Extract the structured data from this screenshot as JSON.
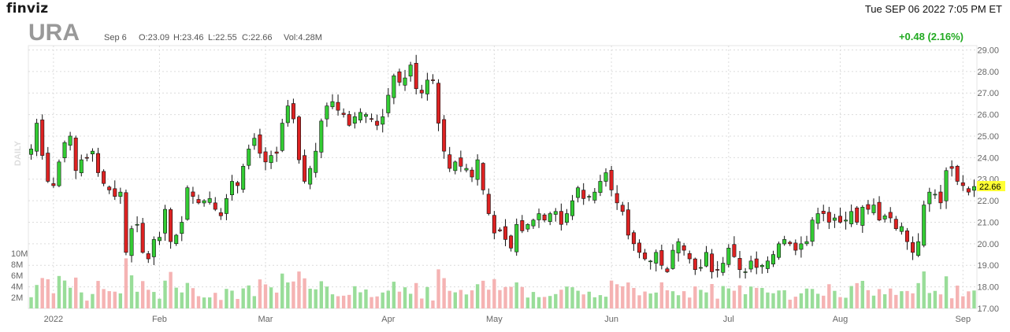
{
  "header": {
    "logo": "finviz",
    "datetime": "Tue SEP 06 2022 7:05 PM ET"
  },
  "chart_data": {
    "type": "candlestick",
    "ticker": "URA",
    "period_label": "DAILY",
    "info": {
      "date": "Sep 6",
      "open": "O:23.09",
      "high": "H:23.46",
      "low": "L:22.55",
      "close": "C:22.66",
      "volume": "Vol:4.28M"
    },
    "change": "+0.48 (2.16%)",
    "last_price": "22.66",
    "price_ylim": [
      17.0,
      29.2
    ],
    "price_ticks": [
      "29.00",
      "28.00",
      "27.00",
      "26.00",
      "25.00",
      "24.00",
      "23.00",
      "22.00",
      "21.00",
      "20.00",
      "19.00",
      "18.00",
      "17.00"
    ],
    "volume_ticks": [
      "10M",
      "8M",
      "6M",
      "4M",
      "2M"
    ],
    "volume_ylim": [
      0,
      12
    ],
    "x_labels": [
      {
        "label": "2022",
        "bar": 4
      },
      {
        "label": "Feb",
        "bar": 23
      },
      {
        "label": "Mar",
        "bar": 42
      },
      {
        "label": "Apr",
        "bar": 64
      },
      {
        "label": "May",
        "bar": 83
      },
      {
        "label": "Jun",
        "bar": 104
      },
      {
        "label": "Jul",
        "bar": 125
      },
      {
        "label": "Aug",
        "bar": 145
      },
      {
        "label": "Sep",
        "bar": 167
      }
    ],
    "vertical_gridlines_at_bars": [
      4,
      23,
      42,
      64,
      83,
      104,
      125,
      145,
      167
    ],
    "grid": true,
    "colors": {
      "up": "#33cc33",
      "down": "#dd2222",
      "up_volume": "#99dd99",
      "down_volume": "#f5b3b3",
      "highlight": "#ffff33"
    },
    "closes": [
      24.4,
      25.6,
      24.1,
      22.9,
      22.7,
      23.8,
      24.7,
      25.0,
      23.4,
      23.9,
      24.0,
      24.3,
      23.3,
      22.8,
      22.5,
      22.2,
      22.4,
      19.6,
      20.7,
      20.9,
      19.6,
      19.3,
      20.2,
      20.3,
      21.6,
      20.1,
      20.4,
      21.0,
      22.6,
      22.2,
      21.9,
      22.0,
      22.1,
      21.6,
      21.3,
      22.1,
      22.9,
      22.7,
      23.6,
      24.4,
      24.9,
      24.2,
      23.8,
      24.1,
      24.2,
      25.6,
      26.4,
      25.8,
      23.9,
      22.9,
      23.5,
      24.3,
      25.7,
      26.4,
      26.6,
      26.2,
      26.0,
      25.5,
      25.9,
      26.1,
      26.0,
      25.8,
      25.5,
      25.9,
      26.9,
      27.8,
      27.5,
      27.7,
      28.3,
      27.2,
      27.0,
      27.6,
      27.6,
      25.6,
      24.3,
      23.5,
      23.8,
      23.6,
      23.5,
      23.1,
      23.9,
      22.5,
      21.4,
      20.5,
      20.6,
      20.2,
      19.8,
      20.9,
      20.6,
      20.9,
      21.1,
      21.4,
      21.1,
      21.4,
      21.5,
      20.9,
      21.4,
      22.0,
      22.6,
      22.1,
      22.2,
      22.4,
      22.9,
      23.3,
      22.5,
      21.9,
      21.5,
      20.4,
      20.0,
      19.6,
      19.3,
      19.2,
      19.6,
      19.0,
      18.7,
      19.7,
      20.1,
      19.7,
      19.3,
      18.8,
      18.9,
      19.6,
      18.7,
      18.8,
      19.1,
      19.8,
      19.4,
      18.8,
      18.7,
      19.2,
      18.9,
      19.0,
      19.2,
      19.5,
      20.0,
      20.2,
      20.0,
      19.7,
      20.0,
      20.1,
      21.1,
      21.4,
      21.4,
      21.0,
      21.2,
      21.0,
      21.1,
      21.5,
      21.0,
      21.7,
      21.6,
      21.8,
      21.1,
      21.3,
      21.2,
      20.7,
      20.8,
      20.1,
      19.6,
      20.1,
      21.8,
      22.4,
      22.3,
      21.9,
      23.4,
      23.5,
      22.9,
      22.7,
      22.4,
      22.66
    ]
  }
}
